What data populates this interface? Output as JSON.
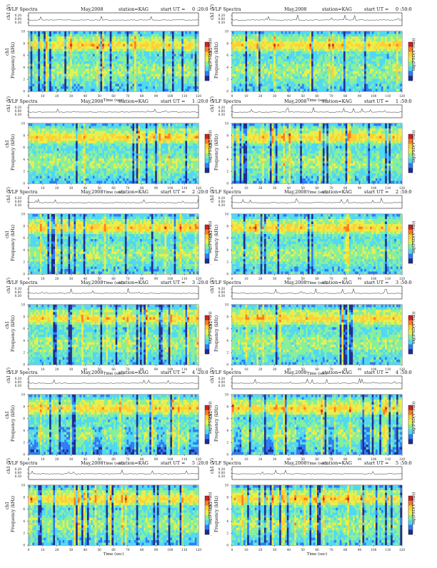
{
  "figure": {
    "title_parts": {
      "label": "VLF Spectra",
      "date": "May,2008",
      "station": "station=KAG",
      "start_prefix": "start  UT ="
    },
    "ylabels": {
      "ch1_top": "ch1 (V)",
      "spectrogram": "Frequency  (kHz)",
      "channel_tag": "ch1"
    },
    "xlabel": "Time  (sec)",
    "colorbar_label": "log(PSD(V²/Hz))"
  },
  "panels": [
    {
      "id": "p1",
      "start": "0 :20:0",
      "column": 0,
      "row": 0
    },
    {
      "id": "p2",
      "start": "0 :50:0",
      "column": 1,
      "row": 0
    },
    {
      "id": "p3",
      "start": "1 :20:0",
      "column": 0,
      "row": 1
    },
    {
      "id": "p4",
      "start": "1 :50:0",
      "column": 1,
      "row": 1
    },
    {
      "id": "p5",
      "start": "2 :20:0",
      "column": 0,
      "row": 2
    },
    {
      "id": "p6",
      "start": "2 :50:0",
      "column": 1,
      "row": 2
    },
    {
      "id": "p7",
      "start": "3 :20:0",
      "column": 0,
      "row": 3
    },
    {
      "id": "p8",
      "start": "3 :50:0",
      "column": 1,
      "row": 3
    },
    {
      "id": "p9",
      "start": "4 :20:0",
      "column": 0,
      "row": 4
    },
    {
      "id": "p10",
      "start": "4 :50:0",
      "column": 1,
      "row": 4
    },
    {
      "id": "p11",
      "start": "5 :20:0",
      "column": 0,
      "row": 5
    },
    {
      "id": "p12",
      "start": "5 :50:0",
      "column": 1,
      "row": 5
    }
  ],
  "chart_data": {
    "type": "heatmap",
    "title": "VLF Spectra  May,2008  station=KAG",
    "xlabel": "Time  (sec)",
    "ylabel": "Frequency  (kHz)",
    "x_ticks": [
      0,
      10,
      20,
      30,
      40,
      50,
      60,
      70,
      80,
      90,
      100,
      110,
      120
    ],
    "xlim": [
      0,
      120
    ],
    "y_ticks_spectrogram": [
      0,
      2,
      4,
      6,
      8,
      10
    ],
    "ylim_spectrogram": [
      0,
      10
    ],
    "top_ticks": [
      "0.20",
      "0.00",
      "0.30"
    ],
    "colorbar_ticks": [
      "-",
      "-",
      "-"
    ],
    "colormap": [
      "#1f2d8f",
      "#2e7cf6",
      "#4fd8f3",
      "#86ef9a",
      "#e8ef4a",
      "#ffcf33",
      "#ff7a1f",
      "#d1221e"
    ],
    "panel_start_times_ut": [
      "0 :20:0",
      "0 :50:0",
      "1 :20:0",
      "1 :50:0",
      "2 :20:0",
      "2 :50:0",
      "3 :20:0",
      "3 :50:0",
      "4 :20:0",
      "4 :50:0",
      "5 :20:0",
      "5 :50:0"
    ]
  }
}
